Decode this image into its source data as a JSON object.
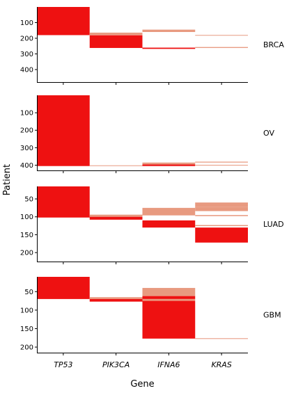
{
  "chart_data": {
    "type": "heatmap",
    "xlabel": "Gene",
    "ylabel": "Patient",
    "genes": [
      "TP53",
      "PIK3CA",
      "IFNA6",
      "KRAS"
    ],
    "colors": {
      "strong": "#ee1111",
      "light": "#e89a80"
    },
    "panels": [
      {
        "label": "BRCA",
        "ylim": [
          0,
          480
        ],
        "yticks": [
          "100",
          "200",
          "300",
          "400"
        ],
        "bars": [
          {
            "gene": "TP53",
            "from": 0,
            "to": 180,
            "color": "strong"
          },
          {
            "gene": "PIK3CA",
            "from": 164,
            "to": 180,
            "color": "light"
          },
          {
            "gene": "PIK3CA",
            "from": 181,
            "to": 262,
            "color": "strong"
          },
          {
            "gene": "IFNA6",
            "from": 145,
            "to": 160,
            "color": "light"
          },
          {
            "gene": "IFNA6",
            "from": 260,
            "to": 268,
            "color": "strong"
          },
          {
            "gene": "KRAS",
            "from": 179,
            "to": 182,
            "color": "light"
          },
          {
            "gene": "KRAS",
            "from": 256,
            "to": 262,
            "color": "light"
          }
        ]
      },
      {
        "label": "OV",
        "ylim": [
          0,
          430
        ],
        "yticks": [
          "100",
          "200",
          "300",
          "400"
        ],
        "bars": [
          {
            "gene": "TP53",
            "from": 0,
            "to": 405,
            "color": "strong"
          },
          {
            "gene": "PIK3CA",
            "from": 401,
            "to": 405,
            "color": "light"
          },
          {
            "gene": "IFNA6",
            "from": 385,
            "to": 396,
            "color": "light"
          },
          {
            "gene": "IFNA6",
            "from": 396,
            "to": 405,
            "color": "strong"
          },
          {
            "gene": "KRAS",
            "from": 380,
            "to": 385,
            "color": "light"
          },
          {
            "gene": "KRAS",
            "from": 398,
            "to": 402,
            "color": "light"
          }
        ]
      },
      {
        "label": "LUAD",
        "ylim": [
          15,
          225
        ],
        "yticks": [
          "50",
          "100",
          "150",
          "200"
        ],
        "bars": [
          {
            "gene": "TP53",
            "from": 15,
            "to": 102,
            "color": "strong"
          },
          {
            "gene": "PIK3CA",
            "from": 94,
            "to": 100,
            "color": "light"
          },
          {
            "gene": "PIK3CA",
            "from": 100,
            "to": 108,
            "color": "strong"
          },
          {
            "gene": "IFNA6",
            "from": 75,
            "to": 96,
            "color": "light"
          },
          {
            "gene": "IFNA6",
            "from": 110,
            "to": 130,
            "color": "strong"
          },
          {
            "gene": "KRAS",
            "from": 60,
            "to": 72,
            "color": "light"
          },
          {
            "gene": "KRAS",
            "from": 72,
            "to": 84,
            "color": "light"
          },
          {
            "gene": "KRAS",
            "from": 95,
            "to": 98,
            "color": "light"
          },
          {
            "gene": "KRAS",
            "from": 123,
            "to": 126,
            "color": "light"
          },
          {
            "gene": "KRAS",
            "from": 130,
            "to": 172,
            "color": "strong"
          }
        ]
      },
      {
        "label": "GBM",
        "ylim": [
          10,
          215
        ],
        "yticks": [
          "50",
          "100",
          "150",
          "200"
        ],
        "bars": [
          {
            "gene": "TP53",
            "from": 10,
            "to": 70,
            "color": "strong"
          },
          {
            "gene": "PIK3CA",
            "from": 65,
            "to": 70,
            "color": "light"
          },
          {
            "gene": "PIK3CA",
            "from": 70,
            "to": 77,
            "color": "strong"
          },
          {
            "gene": "IFNA6",
            "from": 40,
            "to": 62,
            "color": "light"
          },
          {
            "gene": "IFNA6",
            "from": 62,
            "to": 70,
            "color": "strong"
          },
          {
            "gene": "IFNA6",
            "from": 70,
            "to": 75,
            "color": "light"
          },
          {
            "gene": "IFNA6",
            "from": 75,
            "to": 177,
            "color": "strong"
          },
          {
            "gene": "KRAS",
            "from": 176,
            "to": 178,
            "color": "light"
          }
        ]
      }
    ]
  }
}
